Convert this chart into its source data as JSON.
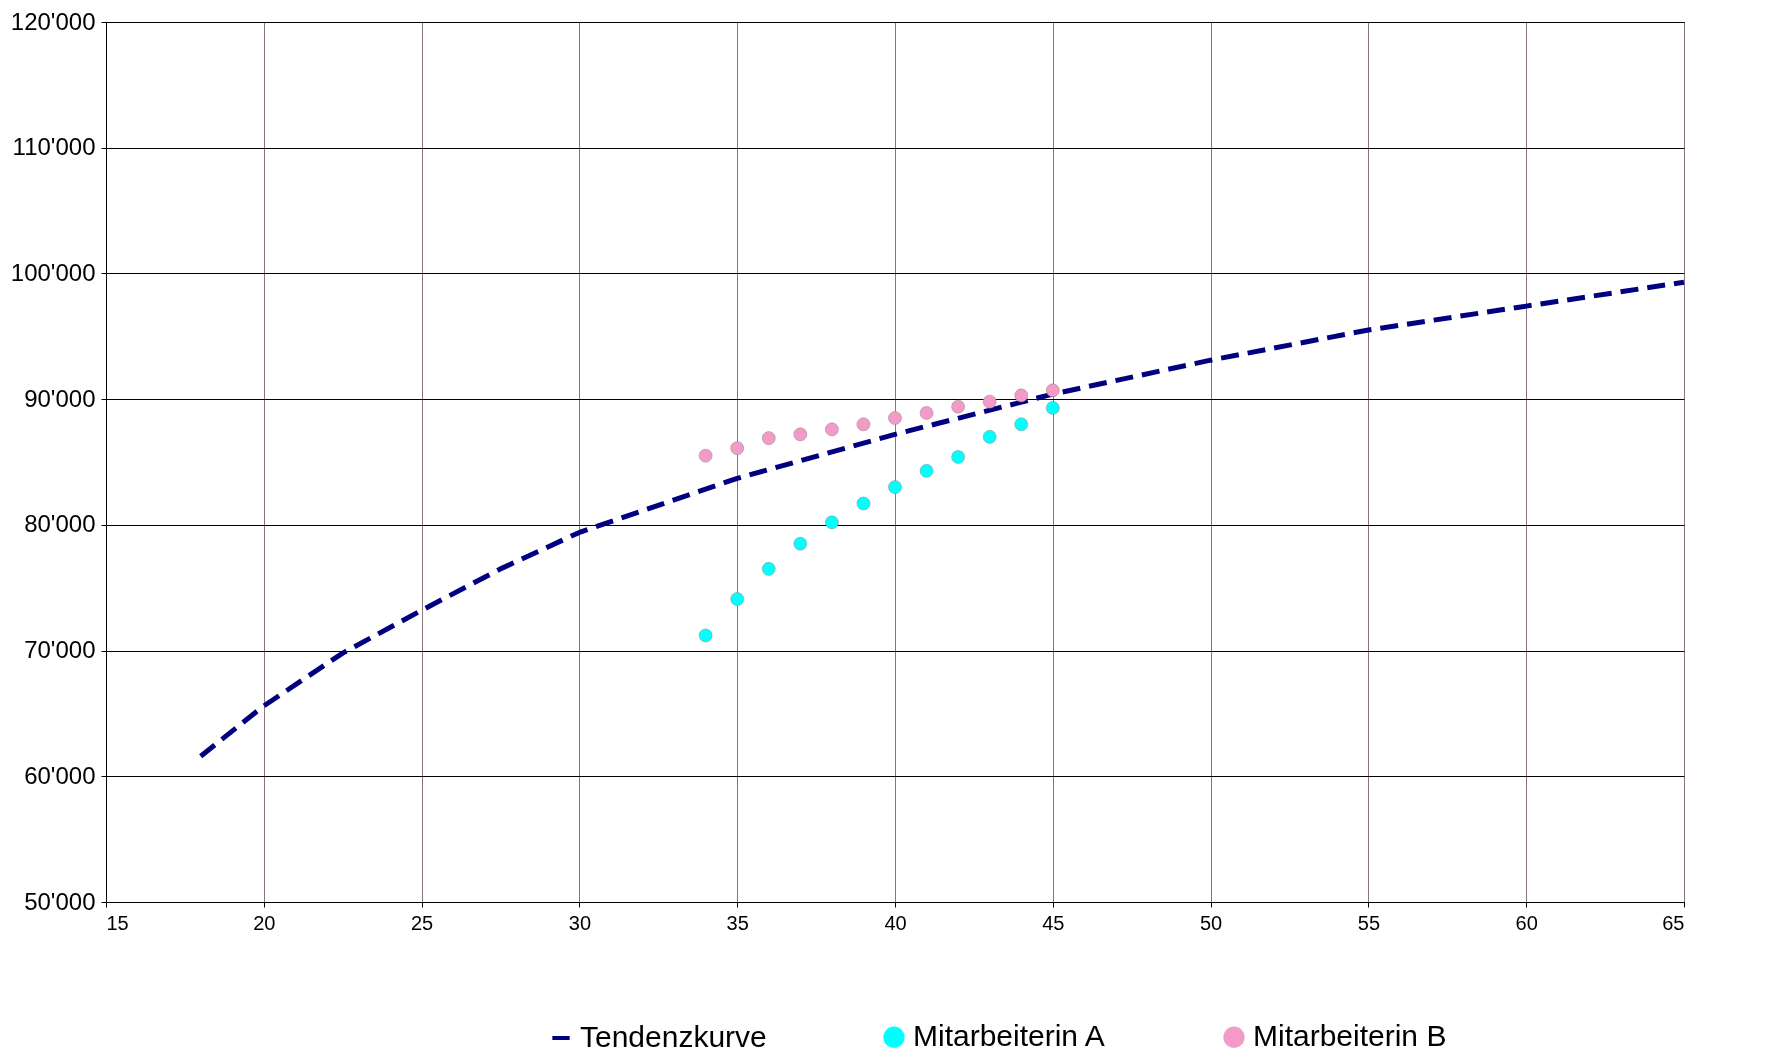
{
  "chart_data": {
    "type": "scatter",
    "xlim": [
      15,
      65
    ],
    "xticks": [
      15,
      20,
      25,
      30,
      35,
      40,
      45,
      50,
      55,
      60,
      65
    ],
    "ylim": [
      50000,
      120000
    ],
    "yticks": [
      {
        "value": 50000,
        "label": "50'000"
      },
      {
        "value": 60000,
        "label": "60'000"
      },
      {
        "value": 70000,
        "label": "70'000"
      },
      {
        "value": 80000,
        "label": "80'000"
      },
      {
        "value": 90000,
        "label": "90'000"
      },
      {
        "value": 100000,
        "label": "100'000"
      },
      {
        "value": 110000,
        "label": "110'000"
      },
      {
        "value": 120000,
        "label": "120'000"
      }
    ],
    "grid": true,
    "legend": "bottom",
    "series": [
      {
        "name": "Tendenzkurve",
        "type": "line",
        "marker": "none",
        "line_style": "dashed",
        "color": "#000080",
        "x": [
          18,
          20,
          22.5,
          25,
          27.5,
          30,
          35,
          40,
          45,
          50,
          55,
          60,
          65
        ],
        "values": [
          61600,
          65600,
          69800,
          73200,
          76500,
          79400,
          83700,
          87200,
          90400,
          93100,
          95500,
          97400,
          99300
        ]
      },
      {
        "name": "Mitarbeiterin A",
        "marker": "circle",
        "color": "#00ffff",
        "x": [
          34,
          35,
          36,
          37,
          38,
          39,
          40,
          41,
          42,
          43,
          44,
          45
        ],
        "values": [
          71200,
          74100,
          76500,
          78500,
          80200,
          81700,
          83000,
          84300,
          85400,
          87000,
          88000,
          89300
        ]
      },
      {
        "name": "Mitarbeiterin B",
        "marker": "circle",
        "color": "#f49ac8",
        "x": [
          34,
          35,
          36,
          37,
          38,
          39,
          40,
          41,
          42,
          43,
          44,
          45
        ],
        "values": [
          85500,
          86100,
          86900,
          87200,
          87600,
          88000,
          88500,
          88900,
          89400,
          89800,
          90300,
          90700
        ]
      }
    ]
  }
}
